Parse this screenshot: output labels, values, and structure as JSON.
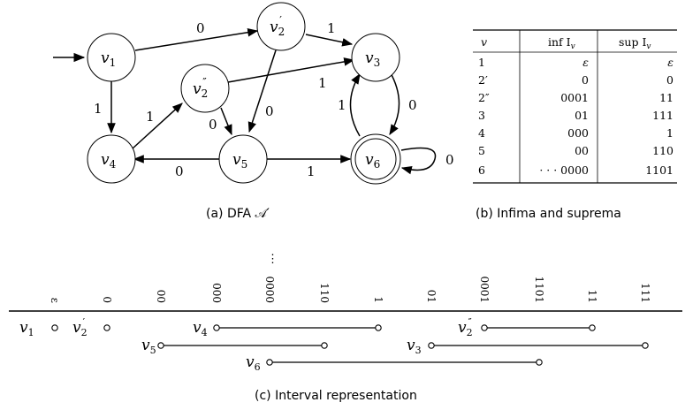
{
  "dfa": {
    "caption": "(a) DFA 𝒜′",
    "states": [
      {
        "id": "v1",
        "label": "v",
        "sub": "1",
        "prime": ""
      },
      {
        "id": "v2p",
        "label": "v",
        "sub": "2",
        "prime": "′"
      },
      {
        "id": "v2pp",
        "label": "v",
        "sub": "2",
        "prime": "″"
      },
      {
        "id": "v3",
        "label": "v",
        "sub": "3",
        "prime": ""
      },
      {
        "id": "v4",
        "label": "v",
        "sub": "4",
        "prime": ""
      },
      {
        "id": "v5",
        "label": "v",
        "sub": "5",
        "prime": ""
      },
      {
        "id": "v6",
        "label": "v",
        "sub": "6",
        "prime": ""
      }
    ],
    "edges": [
      {
        "from": "v1",
        "to": "v2p",
        "label": "0"
      },
      {
        "from": "v2p",
        "to": "v3",
        "label": "1"
      },
      {
        "from": "v1",
        "to": "v4",
        "label": "1"
      },
      {
        "from": "v4",
        "to": "v2pp",
        "label": "1"
      },
      {
        "from": "v2pp",
        "to": "v3",
        "label": "1"
      },
      {
        "from": "v2pp",
        "to": "v5",
        "label": "0"
      },
      {
        "from": "v2p",
        "to": "v5",
        "label": "0"
      },
      {
        "from": "v5",
        "to": "v4",
        "label": "0"
      },
      {
        "from": "v5",
        "to": "v6",
        "label": "1"
      },
      {
        "from": "v3",
        "to": "v6",
        "label": "0"
      },
      {
        "from": "v6",
        "to": "v3",
        "label": "1"
      },
      {
        "from": "v6",
        "to": "v6",
        "label": "0"
      }
    ]
  },
  "table": {
    "caption": "(b) Infima and suprema",
    "headers": [
      "v",
      "inf I",
      "sup I"
    ],
    "header_sub": "v",
    "rows": [
      [
        "1",
        "ε",
        "ε"
      ],
      [
        "2′",
        "0",
        "0"
      ],
      [
        "2″",
        "0001",
        "11"
      ],
      [
        "3",
        "01",
        "111"
      ],
      [
        "4",
        "000",
        "1"
      ],
      [
        "5",
        "00",
        "110"
      ],
      [
        "6",
        "· · · 0000",
        "1101"
      ]
    ]
  },
  "intervals": {
    "caption": "(c) Interval representation",
    "ticks": [
      "ε",
      "0",
      "00",
      "000",
      "0000",
      "110",
      "1",
      "01",
      "0001",
      "1101",
      "11",
      "111"
    ],
    "ellipsis": "⋮",
    "items": [
      {
        "label": "v",
        "sub": "1",
        "prime": "",
        "from": "ε",
        "to": "ε"
      },
      {
        "label": "v",
        "sub": "2",
        "prime": "′",
        "from": "0",
        "to": "0"
      },
      {
        "label": "v",
        "sub": "4",
        "prime": "",
        "from": "000",
        "to": "1"
      },
      {
        "label": "v",
        "sub": "2",
        "prime": "″",
        "from": "0001",
        "to": "11"
      },
      {
        "label": "v",
        "sub": "5",
        "prime": "",
        "from": "00",
        "to": "110"
      },
      {
        "label": "v",
        "sub": "3",
        "prime": "",
        "from": "01",
        "to": "111"
      },
      {
        "label": "v",
        "sub": "6",
        "prime": "",
        "from": "0000",
        "to": "1101"
      }
    ]
  }
}
